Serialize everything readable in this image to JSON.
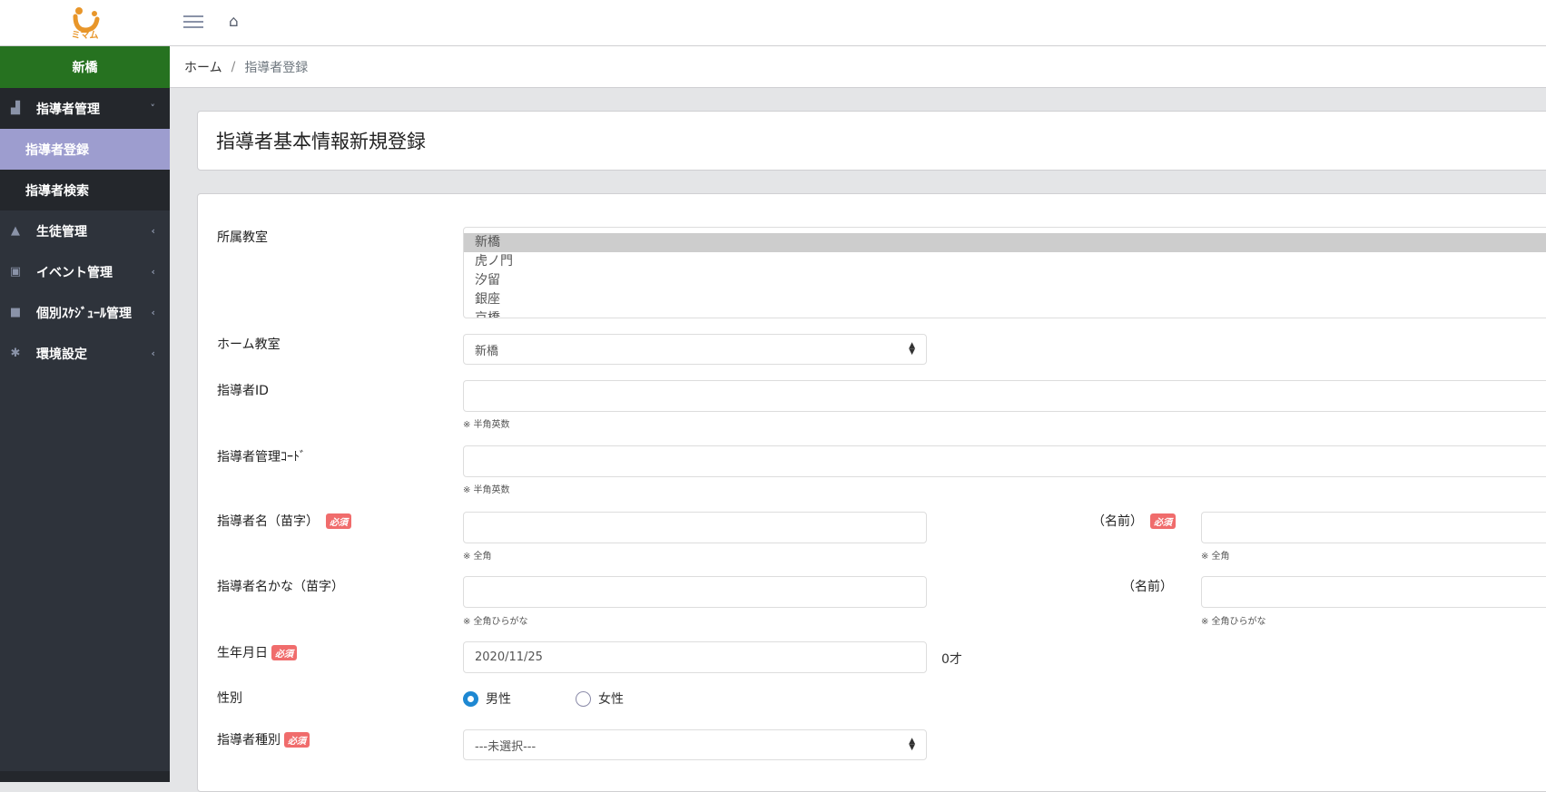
{
  "header": {
    "logo_text": "ミマム",
    "menu_icon": "hamburger-icon",
    "home_icon": "home-icon"
  },
  "sidebar": {
    "branch": "新橋",
    "items": [
      {
        "label": "指導者管理",
        "icon": "chalkboard-teacher-icon",
        "chevron": "˅",
        "open": true,
        "children": [
          {
            "label": "指導者登録",
            "active": true
          },
          {
            "label": "指導者検索",
            "active": false
          }
        ]
      },
      {
        "label": "生徒管理",
        "icon": "graduate-icon",
        "chevron": "‹"
      },
      {
        "label": "イベント管理",
        "icon": "calendar-icon",
        "chevron": "‹"
      },
      {
        "label": "個別ｽｹｼﾞｭｰﾙ管理",
        "icon": "calendar-filled-icon",
        "chevron": "‹"
      },
      {
        "label": "環境設定",
        "icon": "gear-icon",
        "chevron": "‹"
      }
    ]
  },
  "breadcrumb": {
    "home": "ホーム",
    "separator": "/",
    "current": "指導者登録"
  },
  "page_title": "指導者基本情報新規登録",
  "form": {
    "required_badge": "必須",
    "classroom": {
      "label": "所属教室",
      "options": [
        "新橋",
        "虎ノ門",
        "汐留",
        "銀座",
        "京橋"
      ],
      "selected": "新橋"
    },
    "home_classroom": {
      "label": "ホーム教室",
      "value": "新橋"
    },
    "instructor_id": {
      "label": "指導者ID",
      "value": "",
      "hint": "※ 半角英数"
    },
    "management_code": {
      "label": "指導者管理ｺｰﾄﾞ",
      "value": "",
      "hint": "※ 半角英数"
    },
    "last_name": {
      "label": "指導者名（苗字）",
      "value": "",
      "hint": "※ 全角"
    },
    "first_name": {
      "label": "（名前）",
      "value": "",
      "hint": "※ 全角"
    },
    "last_name_kana": {
      "label": "指導者名かな（苗字）",
      "value": "",
      "hint": "※ 全角ひらがな"
    },
    "first_name_kana": {
      "label": "（名前）",
      "value": "",
      "hint": "※ 全角ひらがな"
    },
    "birthdate": {
      "label": "生年月日",
      "value": "2020/11/25",
      "age": "0才"
    },
    "gender": {
      "label": "性別",
      "options": [
        "男性",
        "女性"
      ],
      "selected": "男性"
    },
    "instructor_type": {
      "label": "指導者種別",
      "value": "---未選択---"
    }
  },
  "colors": {
    "branch_bg": "#267220",
    "active_menu": "#9d9dcf",
    "badge": "#f06c6c",
    "radio": "#1e88d2",
    "logo": "#e8962a"
  }
}
